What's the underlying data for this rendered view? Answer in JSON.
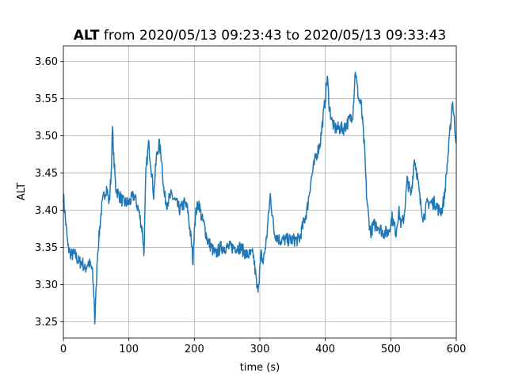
{
  "chart_data": {
    "type": "line",
    "title_bold": "ALT",
    "title_rest": " from 2020/05/13 09:23:43 to 2020/05/13 09:33:43",
    "xlabel": "time (s)",
    "ylabel": "ALT",
    "xlim": [
      0,
      600
    ],
    "ylim": [
      3.228,
      3.621
    ],
    "xticks": [
      0,
      100,
      200,
      300,
      400,
      500,
      600
    ],
    "yticks": [
      3.25,
      3.3,
      3.35,
      3.4,
      3.45,
      3.5,
      3.55,
      3.6
    ],
    "ytick_labels": [
      "3.25",
      "3.30",
      "3.35",
      "3.40",
      "3.45",
      "3.50",
      "3.55",
      "3.60"
    ],
    "grid": true,
    "line_color": "#1f77b4",
    "series": [
      {
        "x": [
          0,
          3,
          7,
          12,
          18,
          24,
          29,
          33,
          38,
          44,
          47,
          48,
          50,
          52,
          55,
          58,
          62,
          66,
          70,
          73,
          75,
          77,
          80,
          85,
          92,
          100,
          108,
          115,
          121,
          123,
          126,
          130,
          134,
          138,
          142,
          146,
          150,
          154,
          158,
          165,
          172,
          178,
          185,
          190,
          195,
          198,
          200,
          203,
          207,
          211,
          215,
          220,
          226,
          232,
          240,
          250,
          260,
          270,
          280,
          290,
          294,
          296,
          299,
          302,
          305,
          310,
          316,
          322,
          330,
          340,
          350,
          360,
          366,
          372,
          378,
          385,
          392,
          396,
          400,
          403,
          406,
          410,
          414,
          420,
          428,
          436,
          442,
          446,
          448,
          451,
          455,
          460,
          463,
          466,
          469,
          474,
          480,
          488,
          496,
          502,
          508,
          512,
          516,
          520,
          525,
          531,
          536,
          540,
          545,
          550,
          556,
          562,
          568,
          573,
          578,
          582,
          586,
          590,
          594,
          597,
          600
        ],
        "y": [
          3.42,
          3.39,
          3.35,
          3.34,
          3.34,
          3.33,
          3.33,
          3.32,
          3.33,
          3.32,
          3.28,
          3.25,
          3.29,
          3.34,
          3.37,
          3.4,
          3.42,
          3.43,
          3.41,
          3.45,
          3.51,
          3.47,
          3.43,
          3.42,
          3.41,
          3.41,
          3.42,
          3.4,
          3.37,
          3.34,
          3.45,
          3.49,
          3.46,
          3.42,
          3.47,
          3.49,
          3.47,
          3.42,
          3.41,
          3.42,
          3.41,
          3.4,
          3.41,
          3.4,
          3.36,
          3.33,
          3.38,
          3.4,
          3.41,
          3.39,
          3.38,
          3.36,
          3.35,
          3.34,
          3.35,
          3.35,
          3.35,
          3.35,
          3.34,
          3.34,
          3.31,
          3.29,
          3.31,
          3.34,
          3.33,
          3.36,
          3.42,
          3.37,
          3.36,
          3.36,
          3.36,
          3.36,
          3.38,
          3.4,
          3.44,
          3.47,
          3.49,
          3.52,
          3.55,
          3.58,
          3.54,
          3.52,
          3.51,
          3.51,
          3.51,
          3.52,
          3.53,
          3.59,
          3.57,
          3.55,
          3.54,
          3.48,
          3.42,
          3.39,
          3.37,
          3.38,
          3.38,
          3.37,
          3.37,
          3.39,
          3.37,
          3.4,
          3.38,
          3.39,
          3.44,
          3.42,
          3.47,
          3.45,
          3.41,
          3.39,
          3.41,
          3.41,
          3.41,
          3.4,
          3.4,
          3.42,
          3.46,
          3.5,
          3.55,
          3.52,
          3.49
        ]
      }
    ]
  }
}
